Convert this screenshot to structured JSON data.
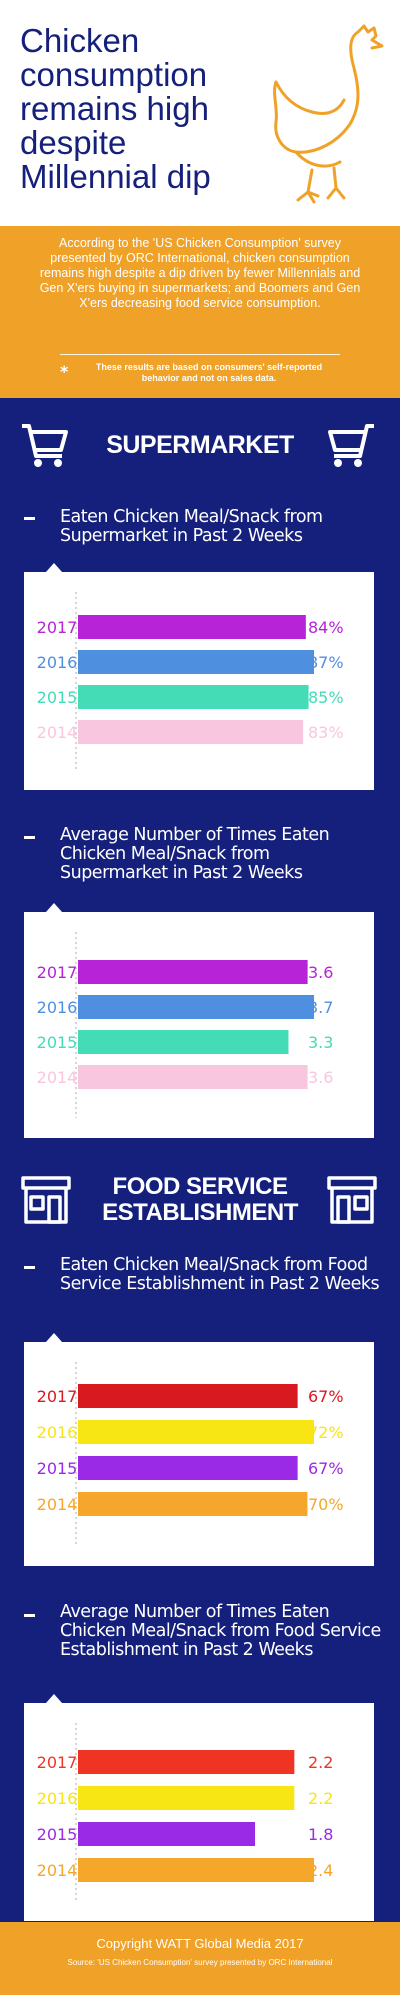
{
  "title": "Chicken consumption remains high despite Millennial dip",
  "intro": "According to the 'US Chicken Consumption' survey presented by ORC International, chicken consumption remains high despite a dip driven by fewer Millennials and Gen X'ers buying in supermarkets; and Boomers and Gen X'ers decreasing food service consumption.",
  "note": {
    "marker": "*",
    "text": "These results are based on consumers' self-reported behavior and not on sales data."
  },
  "sections": {
    "supermarket": "SUPERMARKET",
    "food_service_line1": "FOOD SERVICE",
    "food_service_line2": "ESTABLISHMENT"
  },
  "icons": {
    "hero": "hen-icon",
    "supermarket": "shopping-cart-icon",
    "food_service": "storefront-icon"
  },
  "colors": {
    "navy": "#14207c",
    "orange": "#f0a127"
  },
  "headings": [
    "Eaten Chicken Meal/Snack from Supermarket in Past 2 Weeks",
    "Average Number of Times Eaten Chicken Meal/Snack from Supermarket in Past 2 Weeks",
    "Eaten Chicken Meal/Snack from Food Service Establishment in Past 2 Weeks",
    "Average Number of Times Eaten Chicken Meal/Snack from Food Service Establishment in Past 2 Weeks"
  ],
  "chart_data": [
    {
      "type": "bar",
      "orientation": "horizontal",
      "title": "Eaten Chicken Meal/Snack from Supermarket in Past 2 Weeks",
      "categories": [
        "2017",
        "2016",
        "2015",
        "2014"
      ],
      "values": [
        84,
        87,
        85,
        83
      ],
      "value_labels": [
        "84%",
        "87%",
        "85%",
        "83%"
      ],
      "colors": [
        "#b724d8",
        "#4f8fe0",
        "#43dcb7",
        "#f9c6df"
      ]
    },
    {
      "type": "bar",
      "orientation": "horizontal",
      "title": "Average Number of Times Eaten Chicken Meal/Snack from Supermarket in Past 2 Weeks",
      "categories": [
        "2017",
        "2016",
        "2015",
        "2014"
      ],
      "values": [
        3.6,
        3.7,
        3.3,
        3.6
      ],
      "value_labels": [
        "3.6",
        "3.7",
        "3.3",
        "3.6"
      ],
      "colors": [
        "#b724d8",
        "#4f8fe0",
        "#43dcb7",
        "#f9c6df"
      ]
    },
    {
      "type": "bar",
      "orientation": "horizontal",
      "title": "Eaten Chicken Meal/Snack from Food Service Establishment in Past 2 Weeks",
      "categories": [
        "2017",
        "2016",
        "2015",
        "2014"
      ],
      "values": [
        67,
        72,
        67,
        70
      ],
      "value_labels": [
        "67%",
        "72%",
        "67%",
        "70%"
      ],
      "colors": [
        "#d81920",
        "#f8e514",
        "#9b2ae6",
        "#f4a72a"
      ]
    },
    {
      "type": "bar",
      "orientation": "horizontal",
      "title": "Average Number of Times Eaten Chicken Meal/Snack from Food Service Establishment in Past 2 Weeks",
      "categories": [
        "2017",
        "2016",
        "2015",
        "2014"
      ],
      "values": [
        2.2,
        2.2,
        1.8,
        2.4
      ],
      "value_labels": [
        "2.2",
        "2.2",
        "1.8",
        "2.4"
      ],
      "colors": [
        "#ef3424",
        "#f8e514",
        "#9b2ae6",
        "#f4a72a"
      ]
    }
  ],
  "footer": {
    "copyright": "Copyright WATT Global Media 2017",
    "source": "Source: 'US Chicken Consumption' survey presented by ORC International"
  }
}
